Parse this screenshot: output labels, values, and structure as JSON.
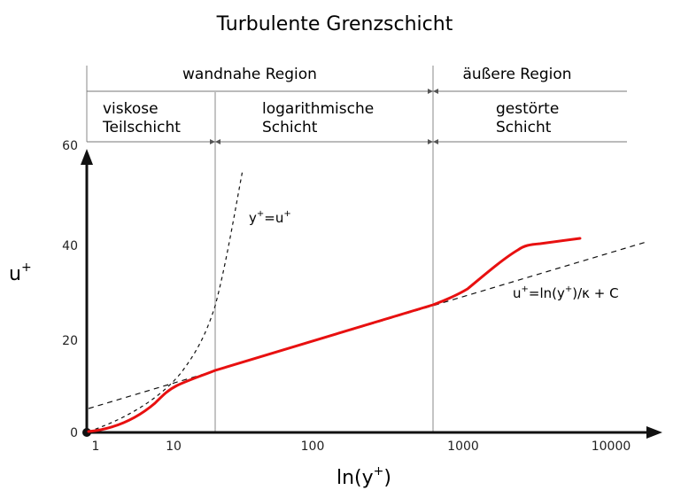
{
  "title": "Turbulente Grenzschicht",
  "regions": {
    "inner": "wandnahe Region",
    "outer": "äußere Region",
    "viscous_line1": "viskose",
    "viscous_line2": "Teilschicht",
    "log_line1": "logarithmische",
    "log_line2": "Schicht",
    "wake_line1": "gestörte",
    "wake_line2": "Schicht"
  },
  "axes": {
    "y_label_base": "u",
    "y_label_sup": "+",
    "x_label_pre": "ln(y",
    "x_label_sup": "+",
    "x_label_post": ")",
    "x_ticks": [
      "1",
      "10",
      "100",
      "1000",
      "10000"
    ],
    "y_ticks": [
      "0",
      "20",
      "40",
      "60"
    ]
  },
  "labels": {
    "linear_law": {
      "a": "y",
      "a_sup": "+",
      "eq": "=u",
      "b_sup": "+"
    },
    "log_law": {
      "a": "u",
      "a_sup": "+",
      "eq": "=ln(y",
      "b_sup": "+",
      "rest": ")/κ + C"
    }
  },
  "colors": {
    "velocity_profile": "#e81010",
    "lines": "#111111",
    "guides": "#888888"
  }
}
